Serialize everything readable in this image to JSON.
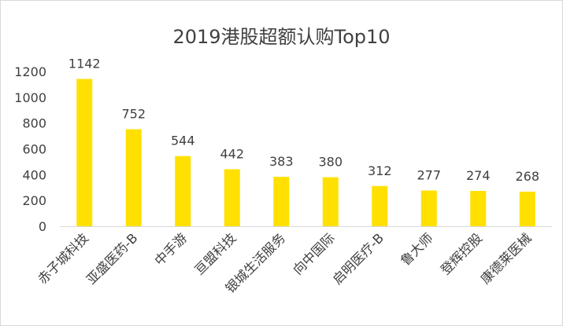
{
  "chart_data": {
    "type": "bar",
    "title": "2019港股超额认购Top10",
    "categories": [
      "赤子城科技",
      "亚盛医药-B",
      "中手游",
      "亘盟科技",
      "银城生活服务",
      "向中国际",
      "启明医疗-B",
      "鲁大师",
      "登辉控股",
      "康德莱医械"
    ],
    "values": [
      1142,
      752,
      544,
      442,
      383,
      380,
      312,
      277,
      274,
      268
    ],
    "yticks": [
      0,
      200,
      400,
      600,
      800,
      1000,
      1200
    ],
    "ylim": [
      0,
      1200
    ],
    "xlabel": "",
    "ylabel": "",
    "grid": false,
    "legend": false,
    "bar_color": "#FFE000",
    "axis_color": "#D9D9D9",
    "text_color": "#404040"
  }
}
